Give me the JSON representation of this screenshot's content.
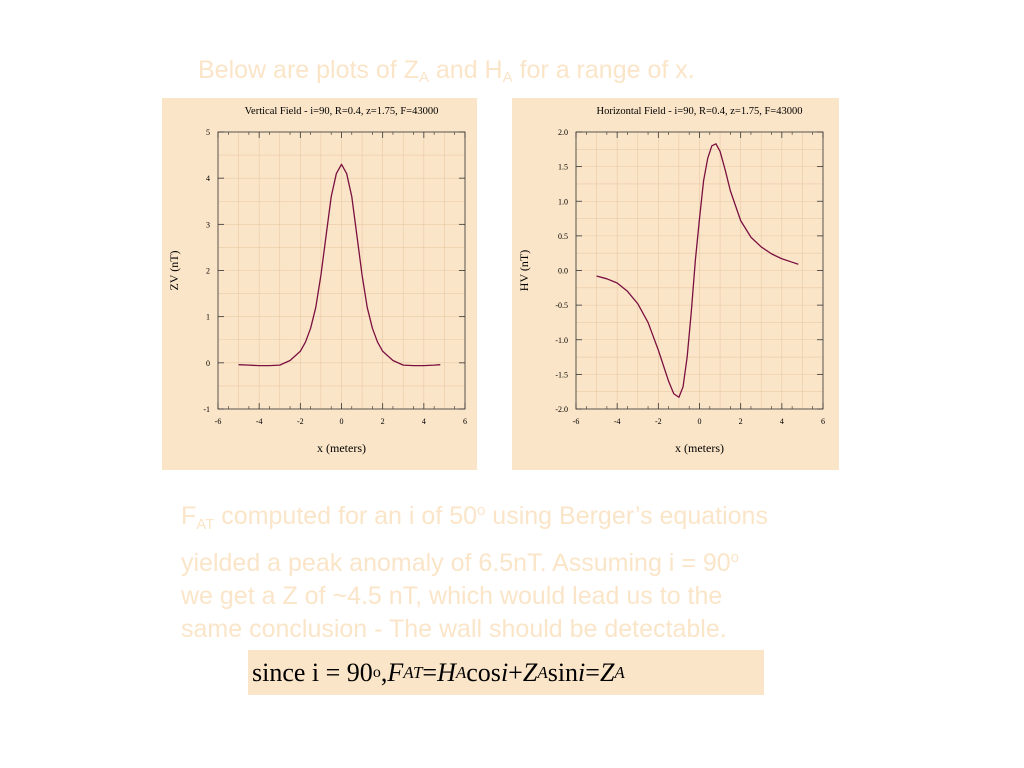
{
  "heading": {
    "prefix": "Below are plots of Z",
    "sub1": "A",
    "middle": " and H",
    "sub2": "A",
    "suffix": " for a range of x."
  },
  "chart_data": [
    {
      "type": "line",
      "title": "Vertical Field - i=90,  R=0.4, z=1.75, F=43000",
      "xlabel": "x (meters)",
      "ylabel": "ZV (nT)",
      "xlim": [
        -6,
        6
      ],
      "ylim": [
        -1,
        5
      ],
      "xticks": [
        "-6",
        "-4",
        "-2",
        "0",
        "2",
        "4",
        "6"
      ],
      "yticks": [
        "-1",
        "0",
        "1",
        "2",
        "3",
        "4",
        "5"
      ],
      "grid": true,
      "line_color": "#7a1040",
      "series": [
        {
          "x": [
            -5,
            -4.5,
            -4,
            -3.5,
            -3,
            -2.5,
            -2,
            -1.75,
            -1.5,
            -1.25,
            -1,
            -0.75,
            -0.5,
            -0.25,
            0,
            0.25,
            0.5,
            0.75,
            1,
            1.25,
            1.5,
            1.75,
            2,
            2.5,
            3,
            3.5,
            4,
            4.5,
            4.8
          ],
          "y": [
            -0.04,
            -0.05,
            -0.06,
            -0.06,
            -0.05,
            0.05,
            0.25,
            0.45,
            0.75,
            1.2,
            1.9,
            2.75,
            3.6,
            4.1,
            4.3,
            4.1,
            3.6,
            2.75,
            1.9,
            1.2,
            0.75,
            0.45,
            0.25,
            0.05,
            -0.05,
            -0.06,
            -0.06,
            -0.05,
            -0.04
          ]
        }
      ]
    },
    {
      "type": "line",
      "title": "Horizontal Field - i=90,  R=0.4, z=1.75, F=43000",
      "xlabel": "x (meters)",
      "ylabel": "HV (nT)",
      "xlim": [
        -6,
        6
      ],
      "ylim": [
        -2.0,
        2.0
      ],
      "xticks": [
        "-6",
        "-4",
        "-2",
        "0",
        "2",
        "4",
        "6"
      ],
      "yticks": [
        "-2.0",
        "-1.5",
        "-1.0",
        "-0.5",
        "0.0",
        "0.5",
        "1.0",
        "1.5",
        "2.0"
      ],
      "grid": true,
      "line_color": "#7a1040",
      "series": [
        {
          "x": [
            -5,
            -4.5,
            -4,
            -3.5,
            -3,
            -2.5,
            -2,
            -1.5,
            -1.25,
            -1,
            -0.8,
            -0.6,
            -0.4,
            -0.2,
            0,
            0.2,
            0.4,
            0.6,
            0.8,
            1,
            1.25,
            1.5,
            2,
            2.5,
            3,
            3.5,
            4,
            4.5,
            4.8
          ],
          "y": [
            -0.08,
            -0.12,
            -0.18,
            -0.3,
            -0.48,
            -0.75,
            -1.15,
            -1.6,
            -1.78,
            -1.83,
            -1.68,
            -1.25,
            -0.6,
            0.15,
            0.75,
            1.3,
            1.62,
            1.8,
            1.83,
            1.72,
            1.45,
            1.15,
            0.72,
            0.48,
            0.34,
            0.24,
            0.17,
            0.12,
            0.09
          ]
        }
      ]
    }
  ],
  "body": {
    "line1_pre": "F",
    "line1_sub": "AT",
    "line1_mid": " computed for an i of 50",
    "line1_sup": "o",
    "line1_post": " using Berger’s equations",
    "line2_pre": "yielded a peak anomaly of 6.5nT. Assuming i = 90",
    "line2_sup": "o",
    "line3": "we get a Z of ~4.5 nT, which would lead us to the",
    "line4": "same conclusion - The wall should be detectable."
  },
  "equation": {
    "part1": "since  i = 90",
    "deg": "o",
    "part2": ", ",
    "f": "F",
    "f_sub": "AT",
    "eq1": " = ",
    "h": "H",
    "h_sub": "A",
    "cos": " cos",
    "i1": "i",
    "plus": " + ",
    "z1": "Z",
    "z1_sub": "A",
    "sin": " sin",
    "i2": "i",
    "eq2": " = ",
    "z2": "Z",
    "z2_sub": "A"
  }
}
